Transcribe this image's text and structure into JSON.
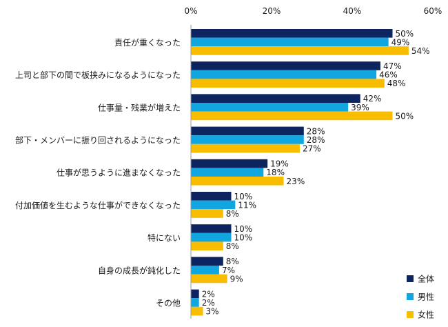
{
  "chart_data": {
    "type": "bar",
    "orientation": "horizontal",
    "title": "",
    "xlabel": "",
    "ylabel": "",
    "xlim": [
      0,
      60
    ],
    "x_ticks": [
      "0%",
      "20%",
      "40%",
      "60%"
    ],
    "x_tick_values": [
      0,
      20,
      40,
      60
    ],
    "value_suffix": "%",
    "grid": false,
    "legend_position": "bottom-right",
    "categories": [
      "責任が重くなった",
      "上司と部下の間で板挟みになるようになった",
      "仕事量・残業が増えた",
      "部下・メンバーに振り回されるようになった",
      "仕事が思うように進まなくなった",
      "付加価値を生むような仕事ができなくなった",
      "特にない",
      "自身の成長が鈍化した",
      "その他"
    ],
    "series": [
      {
        "name": "全体",
        "color": "#0d2461",
        "values": [
          50,
          47,
          42,
          28,
          19,
          10,
          10,
          8,
          2
        ]
      },
      {
        "name": "男性",
        "color": "#12a6e0",
        "values": [
          49,
          46,
          39,
          28,
          18,
          11,
          10,
          7,
          2
        ]
      },
      {
        "name": "女性",
        "color": "#f8bd00",
        "values": [
          54,
          48,
          50,
          27,
          23,
          8,
          8,
          9,
          3
        ]
      }
    ]
  }
}
